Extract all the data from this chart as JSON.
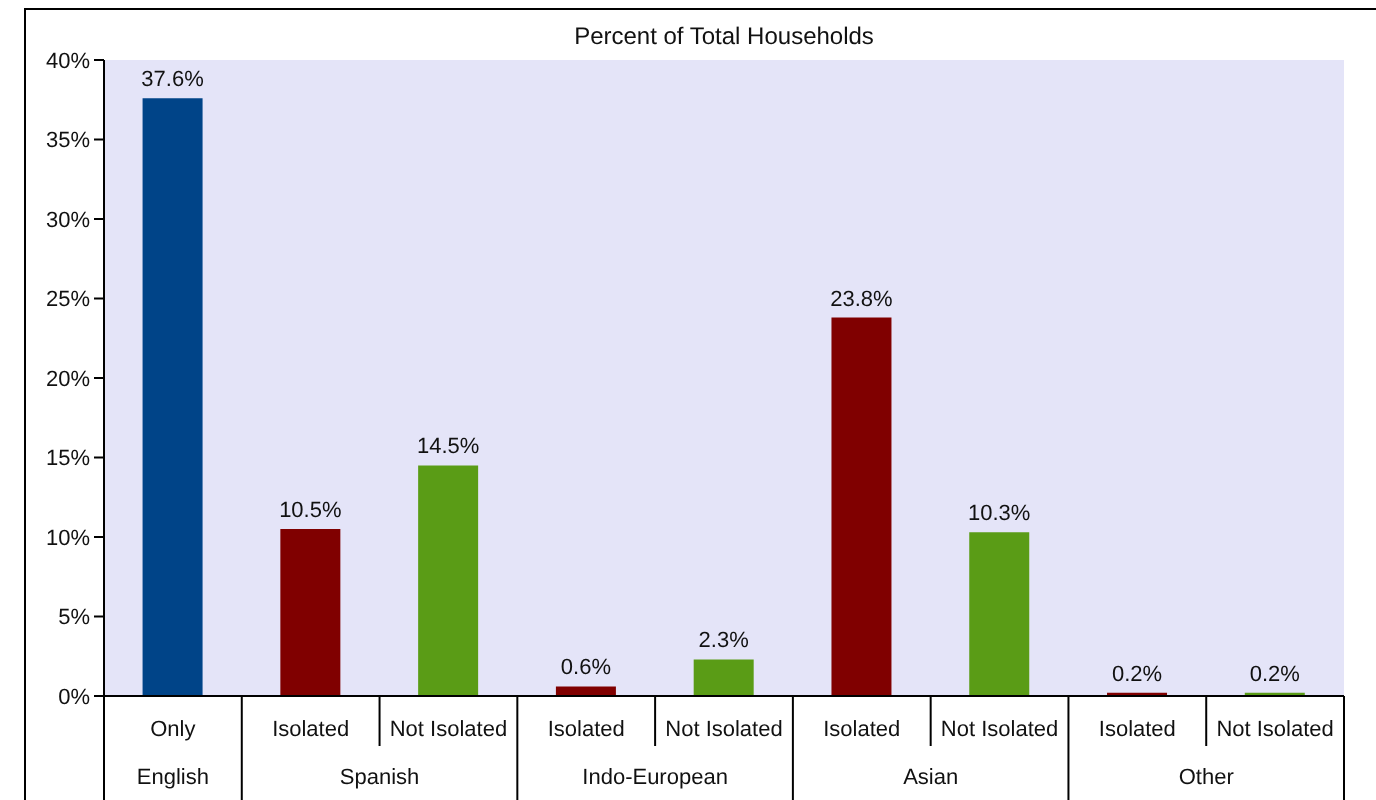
{
  "chart_data": {
    "type": "bar",
    "title": "Percent of Total Households",
    "categories": [
      "Only",
      "Isolated",
      "Not Isolated",
      "Isolated",
      "Not Isolated",
      "Isolated",
      "Not Isolated",
      "Isolated",
      "Not Isolated"
    ],
    "values": [
      37.6,
      10.5,
      14.5,
      0.6,
      2.3,
      23.8,
      10.3,
      0.2,
      0.2
    ],
    "colors": [
      "#004488",
      "#800000",
      "#5a9c16",
      "#800000",
      "#5a9c16",
      "#800000",
      "#5a9c16",
      "#800000",
      "#5a9c16"
    ],
    "value_labels": [
      "37.6%",
      "10.5%",
      "14.5%",
      "0.6%",
      "2.3%",
      "23.8%",
      "10.3%",
      "0.2%",
      "0.2%"
    ],
    "ylim": [
      0,
      40
    ],
    "yticks": [
      {
        "value": 0,
        "label": "0%"
      },
      {
        "value": 5,
        "label": "5%"
      },
      {
        "value": 10,
        "label": "10%"
      },
      {
        "value": 15,
        "label": "15%"
      },
      {
        "value": 20,
        "label": "20%"
      },
      {
        "value": 25,
        "label": "25%"
      },
      {
        "value": 30,
        "label": "30%"
      },
      {
        "value": 35,
        "label": "35%"
      },
      {
        "value": 40,
        "label": "40%"
      }
    ],
    "annotations": [
      "English",
      "Spanish",
      "Indo-European",
      "Asian",
      "Other"
    ]
  }
}
